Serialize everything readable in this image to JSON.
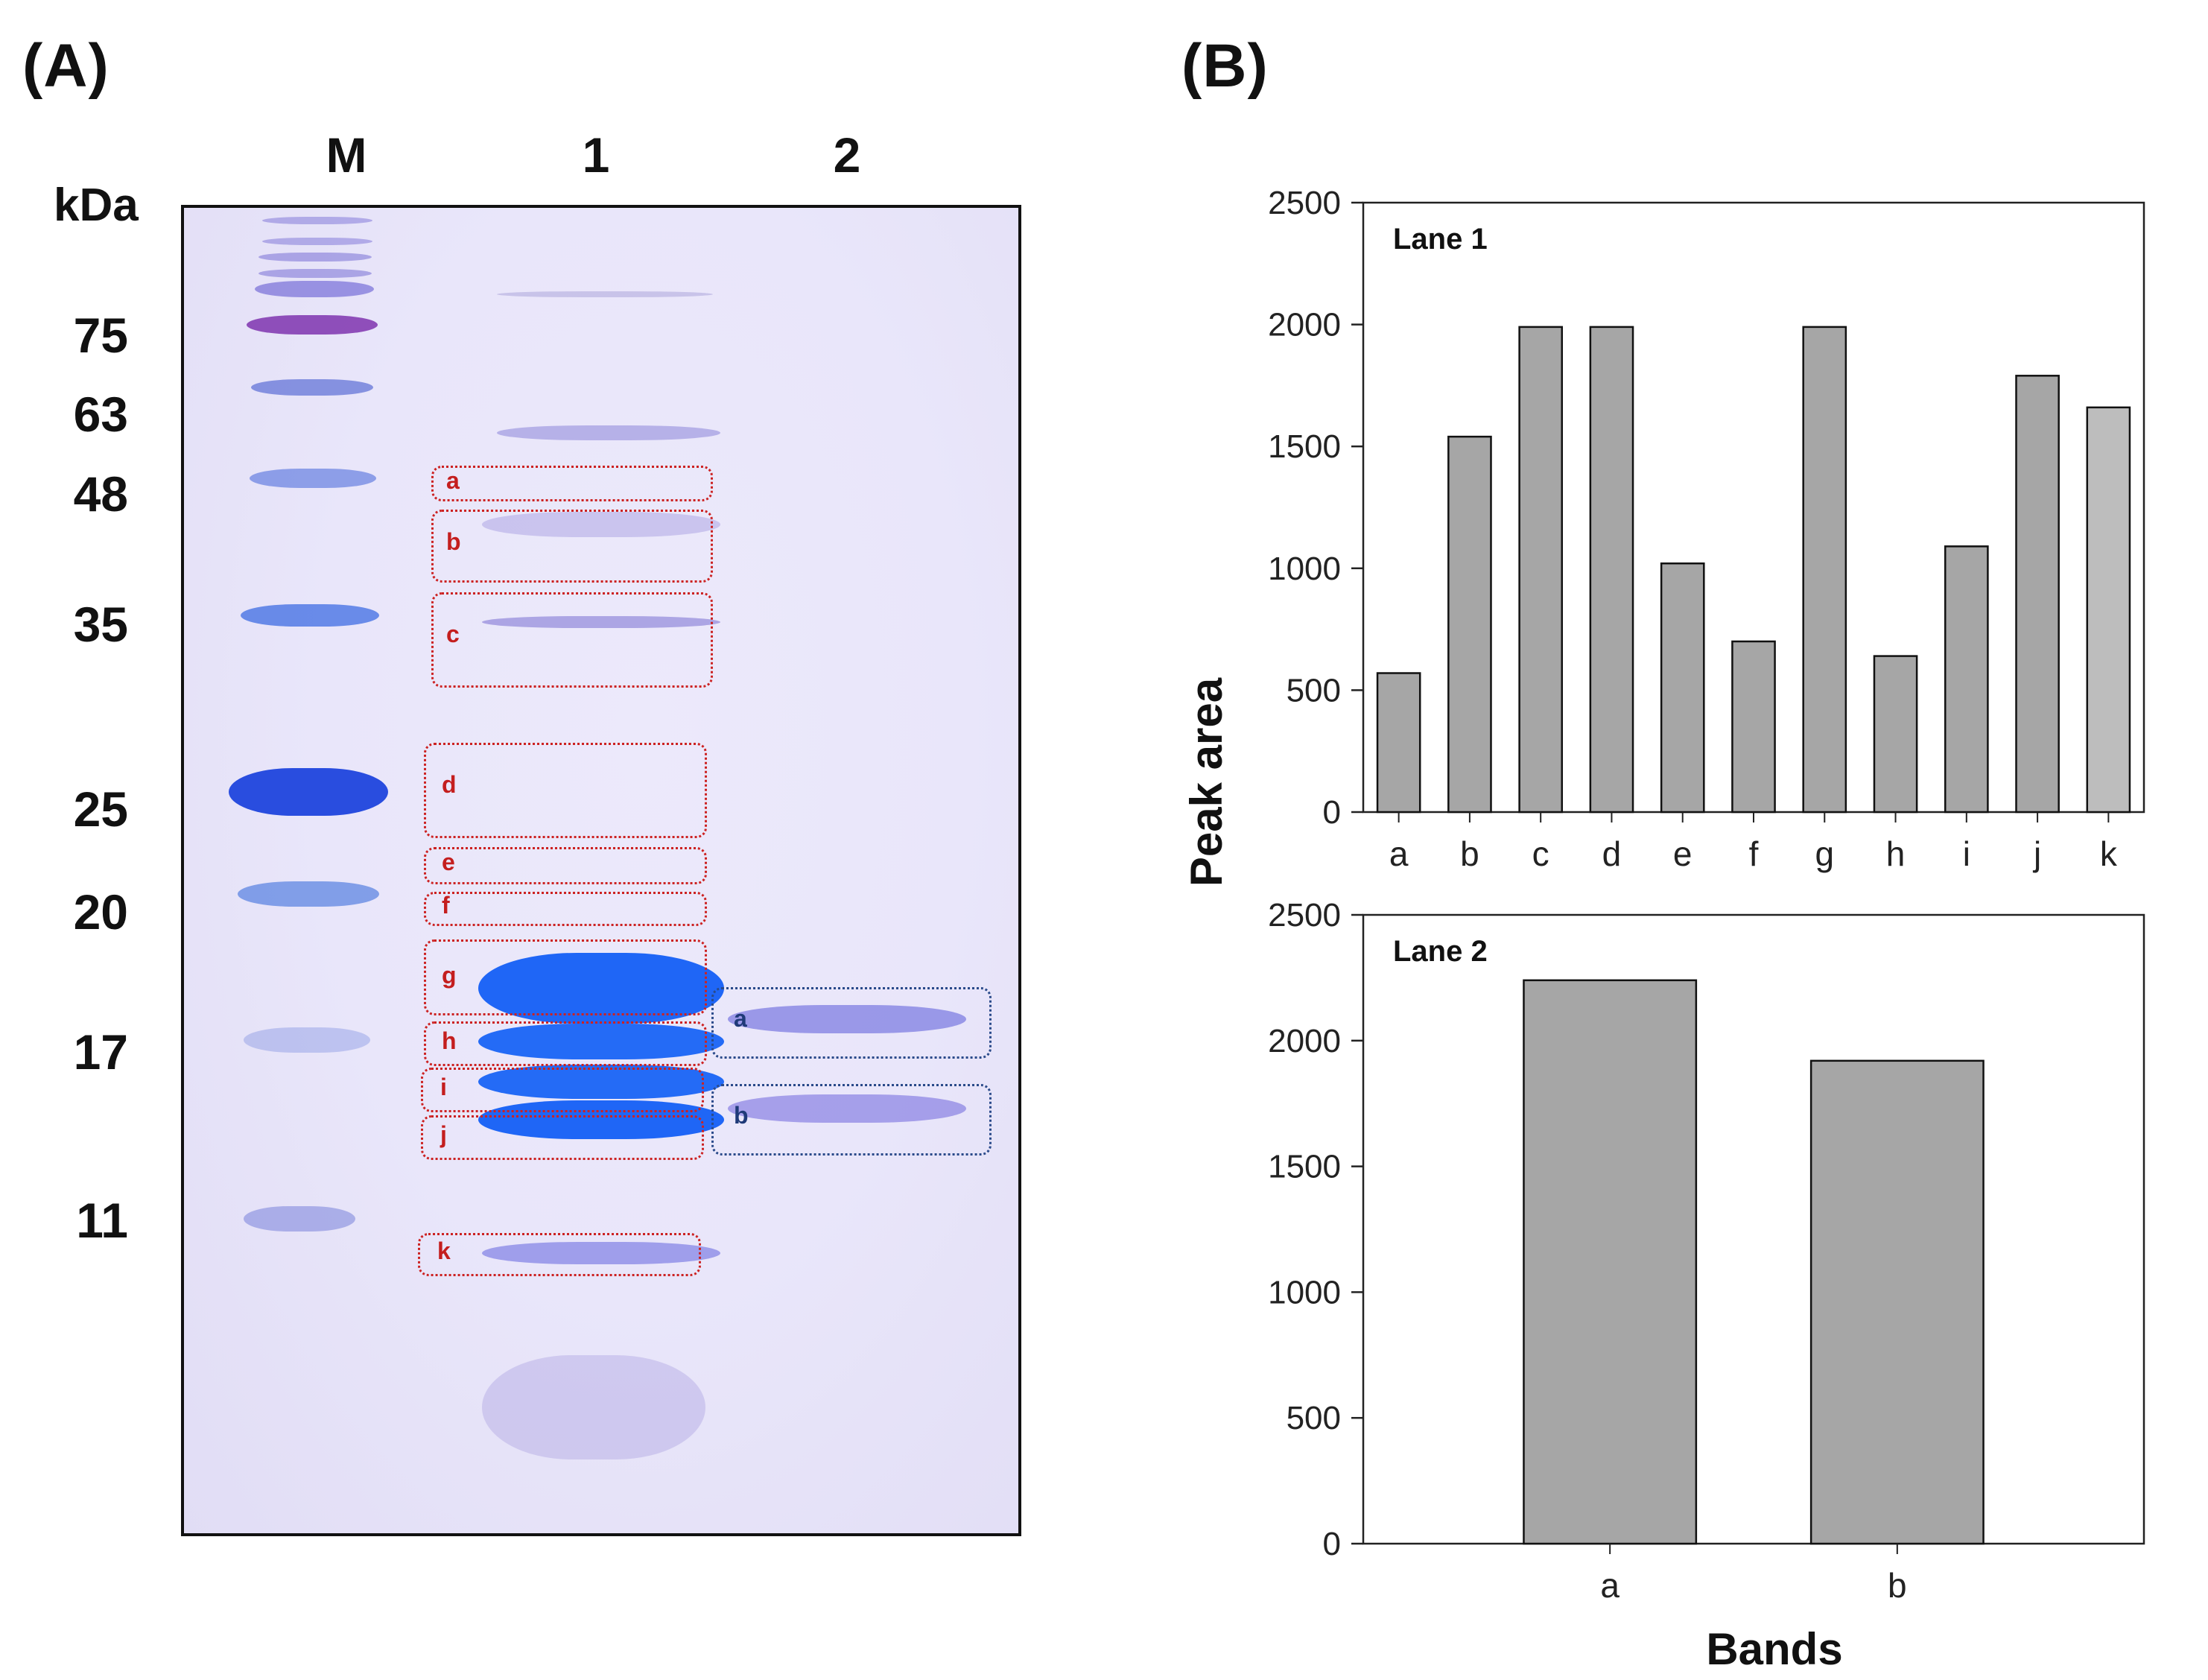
{
  "figure": {
    "panel_a_label": "(A)",
    "panel_b_label": "(B)"
  },
  "gel": {
    "lane_labels": [
      "M",
      "1",
      "2"
    ],
    "unit_label": "kDa",
    "marker_weights": [
      "75",
      "63",
      "48",
      "35",
      "25",
      "20",
      "17",
      "11"
    ],
    "lane1_boxes": [
      "a",
      "b",
      "c",
      "d",
      "e",
      "f",
      "g",
      "h",
      "i",
      "j",
      "k"
    ],
    "lane2_boxes": [
      "a",
      "b"
    ],
    "colors": {
      "lane1_box": "#cc2222",
      "lane2_box": "#2a4a8a",
      "stain": "#1a55e6",
      "marker": "#7a3fb0"
    }
  },
  "chart_data": [
    {
      "type": "bar",
      "title": "Lane 1",
      "categories": [
        "a",
        "b",
        "c",
        "d",
        "e",
        "f",
        "g",
        "h",
        "i",
        "j",
        "k"
      ],
      "values": [
        570,
        1540,
        1990,
        1990,
        1020,
        700,
        1990,
        640,
        1090,
        1790,
        1660
      ],
      "ylabel": "Peak area",
      "xlabel": "",
      "ylim": [
        0,
        2500
      ],
      "yticks": [
        0,
        500,
        1000,
        1500,
        2000,
        2500
      ],
      "bar_color": "#a6a6a6",
      "highlight_last_color": "#bdbdbd"
    },
    {
      "type": "bar",
      "title": "Lane 2",
      "categories": [
        "a",
        "b"
      ],
      "values": [
        2240,
        1920
      ],
      "ylabel": "Peak area",
      "xlabel": "Bands",
      "ylim": [
        0,
        2500
      ],
      "yticks": [
        0,
        500,
        1000,
        1500,
        2000,
        2500
      ],
      "bar_color": "#a6a6a6"
    }
  ]
}
